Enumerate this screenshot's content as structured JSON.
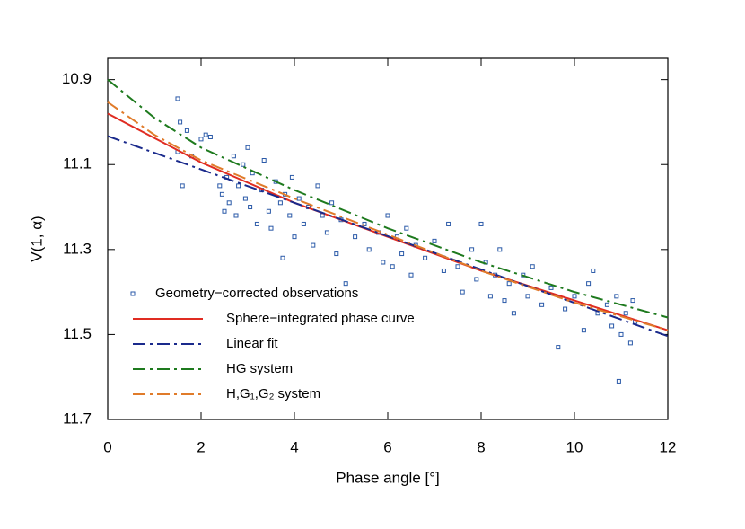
{
  "chart_data": {
    "type": "scatter",
    "xlabel": "Phase angle [°]",
    "ylabel": "V(1, α)",
    "xlim": [
      0,
      12
    ],
    "xticks": [
      0,
      2,
      4,
      6,
      8,
      10,
      12
    ],
    "ylim": [
      10.85,
      11.7
    ],
    "yticks": [
      10.9,
      11.1,
      11.3,
      11.5,
      11.7
    ],
    "y_inverted": true,
    "legend": "lower left",
    "series": [
      {
        "name": "Geometry−corrected observations",
        "color": "#2b5aa8",
        "marker": "square",
        "x": [
          1.5,
          1.55,
          1.5,
          1.6,
          1.7,
          1.8,
          2.0,
          2.1,
          2.2,
          2.4,
          2.45,
          2.5,
          2.55,
          2.6,
          2.7,
          2.75,
          2.8,
          2.9,
          2.95,
          3.0,
          3.05,
          3.1,
          3.2,
          3.3,
          3.35,
          3.45,
          3.5,
          3.6,
          3.7,
          3.75,
          3.8,
          3.9,
          3.95,
          4.0,
          4.1,
          4.2,
          4.3,
          4.4,
          4.5,
          4.6,
          4.7,
          4.8,
          4.9,
          5.0,
          5.1,
          5.3,
          5.5,
          5.6,
          5.8,
          5.9,
          6.0,
          6.1,
          6.2,
          6.3,
          6.4,
          6.5,
          6.6,
          6.8,
          7.0,
          7.2,
          7.3,
          7.5,
          7.6,
          7.8,
          7.9,
          8.0,
          8.1,
          8.2,
          8.3,
          8.4,
          8.5,
          8.6,
          8.7,
          8.9,
          9.0,
          9.1,
          9.3,
          9.5,
          9.65,
          9.8,
          10.0,
          10.2,
          10.3,
          10.4,
          10.5,
          10.7,
          10.8,
          10.9,
          10.95,
          11.0,
          11.1,
          11.2,
          11.25,
          11.3
        ],
        "values": [
          10.945,
          11.0,
          11.07,
          11.15,
          11.02,
          11.08,
          11.04,
          11.03,
          11.035,
          11.15,
          11.17,
          11.21,
          11.13,
          11.19,
          11.08,
          11.22,
          11.15,
          11.1,
          11.18,
          11.06,
          11.2,
          11.12,
          11.24,
          11.16,
          11.09,
          11.21,
          11.25,
          11.14,
          11.19,
          11.32,
          11.17,
          11.22,
          11.13,
          11.27,
          11.18,
          11.24,
          11.2,
          11.29,
          11.15,
          11.22,
          11.26,
          11.19,
          11.31,
          11.23,
          11.38,
          11.27,
          11.24,
          11.3,
          11.26,
          11.33,
          11.22,
          11.34,
          11.27,
          11.31,
          11.25,
          11.36,
          11.29,
          11.32,
          11.28,
          11.35,
          11.24,
          11.34,
          11.4,
          11.3,
          11.37,
          11.24,
          11.33,
          11.41,
          11.36,
          11.3,
          11.42,
          11.38,
          11.45,
          11.36,
          11.41,
          11.34,
          11.43,
          11.39,
          11.53,
          11.44,
          11.41,
          11.49,
          11.38,
          11.35,
          11.45,
          11.43,
          11.48,
          11.41,
          11.61,
          11.5,
          11.45,
          11.52,
          11.42,
          11.47
        ]
      },
      {
        "name": "Sphere−integrated phase curve",
        "color": "#e02c22",
        "line_style": "solid",
        "x": [
          0,
          2,
          4,
          6,
          8,
          10,
          12
        ],
        "values": [
          10.98,
          11.095,
          11.19,
          11.27,
          11.35,
          11.42,
          11.49
        ]
      },
      {
        "name": "Linear fit",
        "color": "#1a2a8c",
        "line_style": "dash-dot",
        "x": [
          0,
          12
        ],
        "values": [
          11.033,
          11.504
        ]
      },
      {
        "name": "HG system",
        "color": "#1e7a1e",
        "line_style": "dash-dot",
        "x": [
          0,
          1,
          2,
          4,
          6,
          8,
          10,
          12
        ],
        "values": [
          10.9,
          10.99,
          11.06,
          11.16,
          11.25,
          11.33,
          11.4,
          11.46
        ]
      },
      {
        "name": "H,G₁,G₂ system",
        "color": "#e07b2a",
        "line_style": "dash-dot",
        "x": [
          0,
          1,
          2,
          4,
          6,
          8,
          10,
          12
        ],
        "values": [
          10.953,
          11.03,
          11.09,
          11.18,
          11.265,
          11.35,
          11.425,
          11.49
        ]
      }
    ]
  }
}
